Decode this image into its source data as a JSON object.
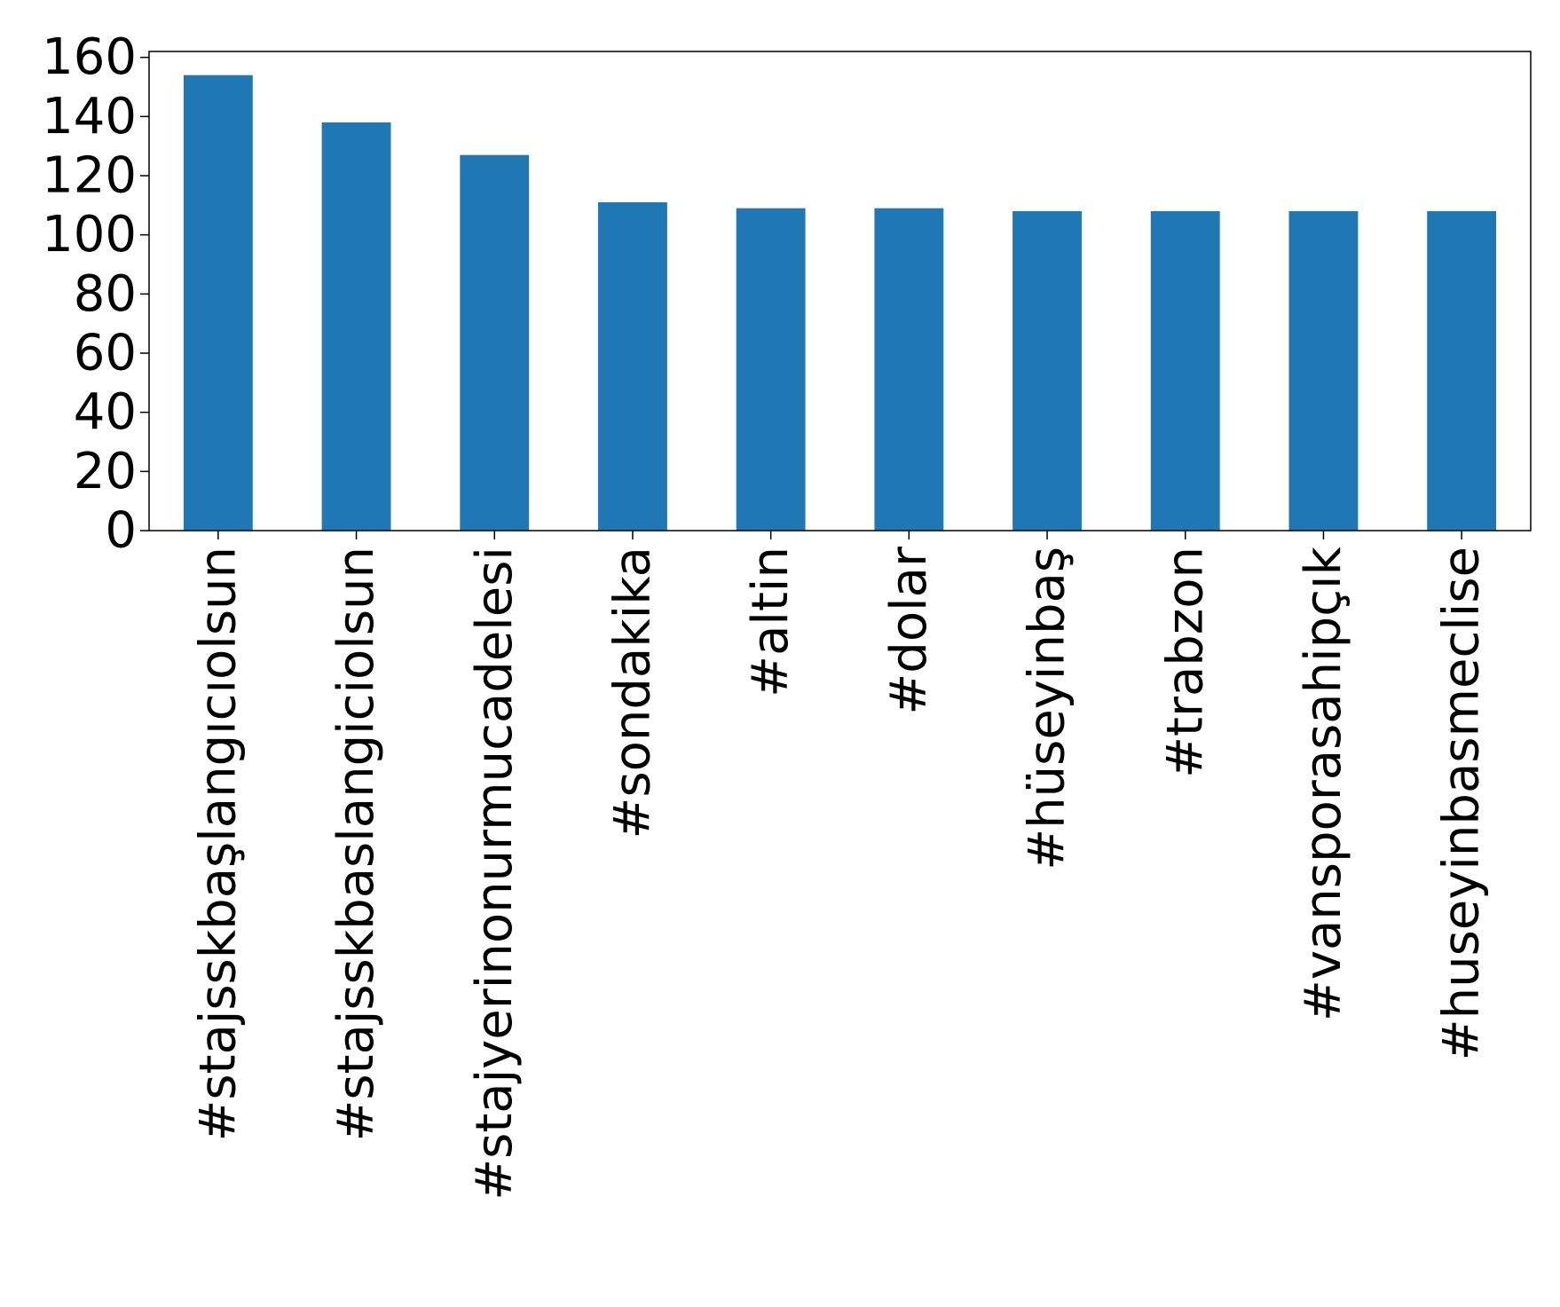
{
  "chart_data": {
    "type": "bar",
    "title": "",
    "xlabel": "",
    "ylabel": "",
    "categories": [
      "#stajsskbaşlangıcıolsun",
      "#stajsskbaslangiciolsun",
      "#stajyerinonurmucadelesi",
      "#sondakika",
      "#altin",
      "#dolar",
      "#hüseyinbaş",
      "#trabzon",
      "#vansporasahipçık",
      "#huseyinbasmeclise"
    ],
    "values": [
      154,
      138,
      127,
      111,
      109,
      109,
      108,
      108,
      108,
      108
    ],
    "ylim": [
      0,
      162
    ],
    "yticks": [
      0,
      20,
      40,
      60,
      80,
      100,
      120,
      140,
      160
    ],
    "grid": false,
    "legend": "none",
    "bar_color": "#1f77b4"
  }
}
